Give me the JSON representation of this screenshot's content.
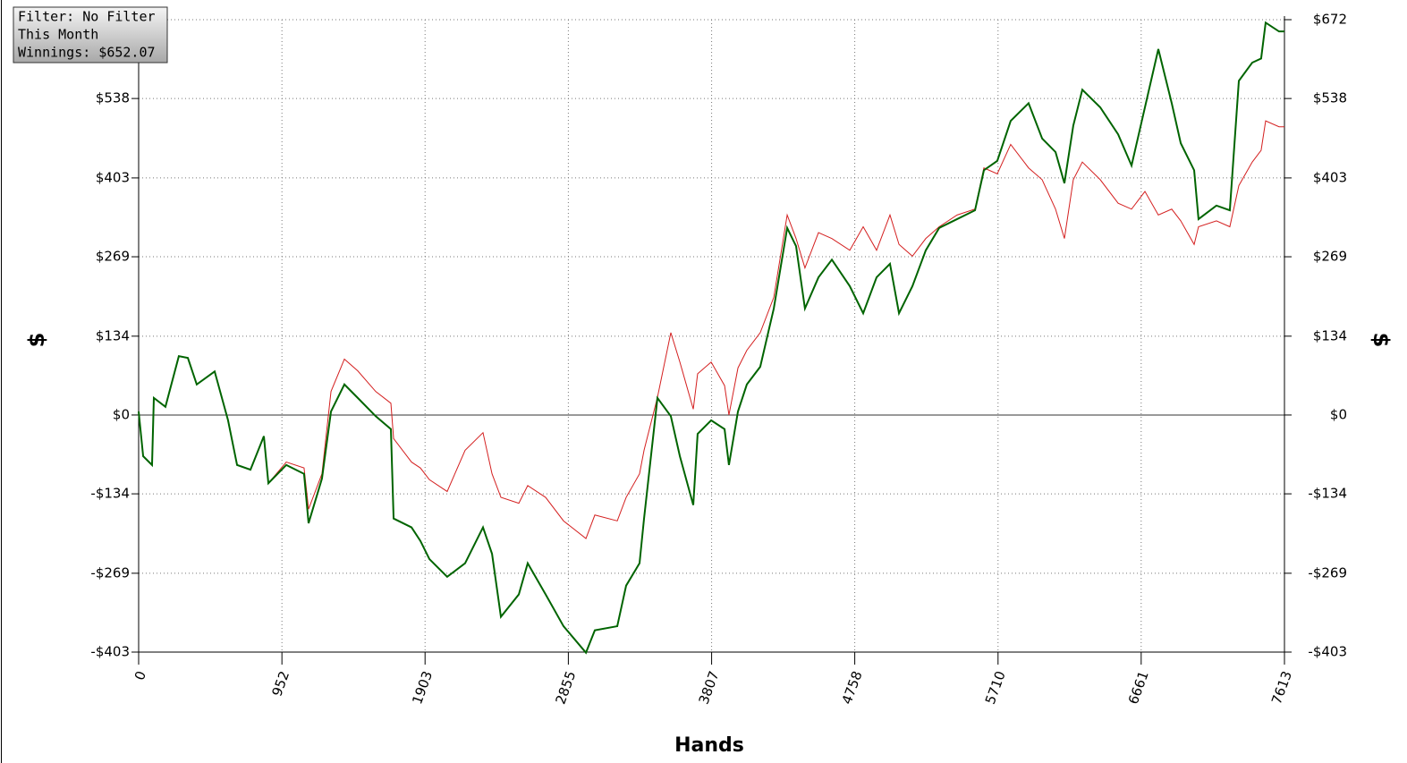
{
  "chart_data": {
    "type": "line",
    "info_box": [
      "Filter: No Filter",
      "This Month",
      "Winnings: $652.07"
    ],
    "xlabel": "Hands",
    "ylabel": "$",
    "y2label": "$",
    "x": [
      0,
      30,
      89,
      101,
      178,
      267,
      327,
      386,
      505,
      594,
      654,
      743,
      832,
      862,
      981,
      1099,
      1129,
      1218,
      1278,
      1367,
      1456,
      1575,
      1676,
      1694,
      1813,
      1872,
      1932,
      2050,
      2169,
      2288,
      2348,
      2407,
      2526,
      2585,
      2704,
      2823,
      2972,
      3031,
      3180,
      3239,
      3328,
      3358,
      3447,
      3536,
      3596,
      3685,
      3714,
      3804,
      3893,
      3922,
      3982,
      4041,
      4130,
      4220,
      4309,
      4368,
      4427,
      4517,
      4606,
      4725,
      4814,
      4903,
      4992,
      5052,
      5141,
      5230,
      5319,
      5438,
      5557,
      5616,
      5705,
      5794,
      5913,
      6003,
      6092,
      6151,
      6210,
      6270,
      6389,
      6508,
      6597,
      6686,
      6775,
      6864,
      6924,
      7013,
      7042,
      7161,
      7250,
      7310,
      7399,
      7458,
      7488,
      7577,
      7613
    ],
    "series": [
      {
        "color": "#006400",
        "values": [
          6,
          -70,
          -85,
          29,
          14,
          100,
          97,
          52,
          74,
          -9,
          -85,
          -93,
          -36,
          -116,
          -85,
          -100,
          -184,
          -108,
          6,
          52,
          29,
          -2,
          -24,
          -176,
          -191,
          -214,
          -245,
          -275,
          -252,
          -191,
          -236,
          -343,
          -305,
          -252,
          -305,
          -359,
          -404,
          -366,
          -359,
          -290,
          -252,
          -176,
          29,
          -2,
          -70,
          -153,
          -32,
          -9,
          -24,
          -85,
          6,
          52,
          82,
          181,
          318,
          287,
          181,
          234,
          264,
          219,
          173,
          234,
          257,
          173,
          219,
          280,
          318,
          333,
          348,
          416,
          432,
          500,
          530,
          470,
          447,
          394,
          492,
          553,
          523,
          477,
          424,
          523,
          622,
          530,
          462,
          416,
          333,
          356,
          348,
          568,
          599,
          606,
          667,
          652,
          652
        ]
      },
      {
        "color": "#d42020",
        "values": [
          6,
          -70,
          -85,
          29,
          14,
          100,
          97,
          52,
          74,
          -9,
          -85,
          -93,
          -36,
          -116,
          -80,
          -90,
          -160,
          -100,
          40,
          95,
          75,
          40,
          20,
          -40,
          -80,
          -90,
          -110,
          -130,
          -60,
          -30,
          -100,
          -140,
          -150,
          -120,
          -140,
          -180,
          -210,
          -170,
          -180,
          -140,
          -100,
          -60,
          30,
          140,
          90,
          10,
          70,
          90,
          50,
          0,
          80,
          110,
          140,
          200,
          340,
          300,
          250,
          310,
          300,
          280,
          320,
          280,
          340,
          290,
          270,
          300,
          320,
          340,
          350,
          420,
          410,
          460,
          420,
          400,
          350,
          300,
          400,
          430,
          400,
          360,
          350,
          380,
          340,
          350,
          330,
          290,
          320,
          330,
          320,
          390,
          430,
          450,
          500,
          490,
          490
        ]
      }
    ],
    "xlim": [
      0,
      7613
    ],
    "xticks": [
      0,
      952,
      1903,
      2855,
      3807,
      4758,
      5710,
      6661,
      7613
    ],
    "ylim": [
      -403,
      672
    ],
    "yticks": [
      {
        "value": -403,
        "label": "-$403"
      },
      {
        "value": -269,
        "label": "-$269"
      },
      {
        "value": -134,
        "label": "-$134"
      },
      {
        "value": 0,
        "label": "$0"
      },
      {
        "value": 134,
        "label": "$134"
      },
      {
        "value": 269,
        "label": "$269"
      },
      {
        "value": 403,
        "label": "$403"
      },
      {
        "value": 538,
        "label": "$538"
      },
      {
        "value": 672,
        "label": "$672"
      }
    ],
    "y2lim": [
      -403,
      672
    ],
    "y2ticks": [
      {
        "value": -403,
        "label": "-$403"
      },
      {
        "value": -269,
        "label": "-$269"
      },
      {
        "value": -134,
        "label": "-$134"
      },
      {
        "value": 0,
        "label": "$0"
      },
      {
        "value": 134,
        "label": "$134"
      },
      {
        "value": 269,
        "label": "$269"
      },
      {
        "value": 403,
        "label": "$403"
      },
      {
        "value": 538,
        "label": "$538"
      },
      {
        "value": 672,
        "label": "$672"
      }
    ],
    "grid": true
  }
}
